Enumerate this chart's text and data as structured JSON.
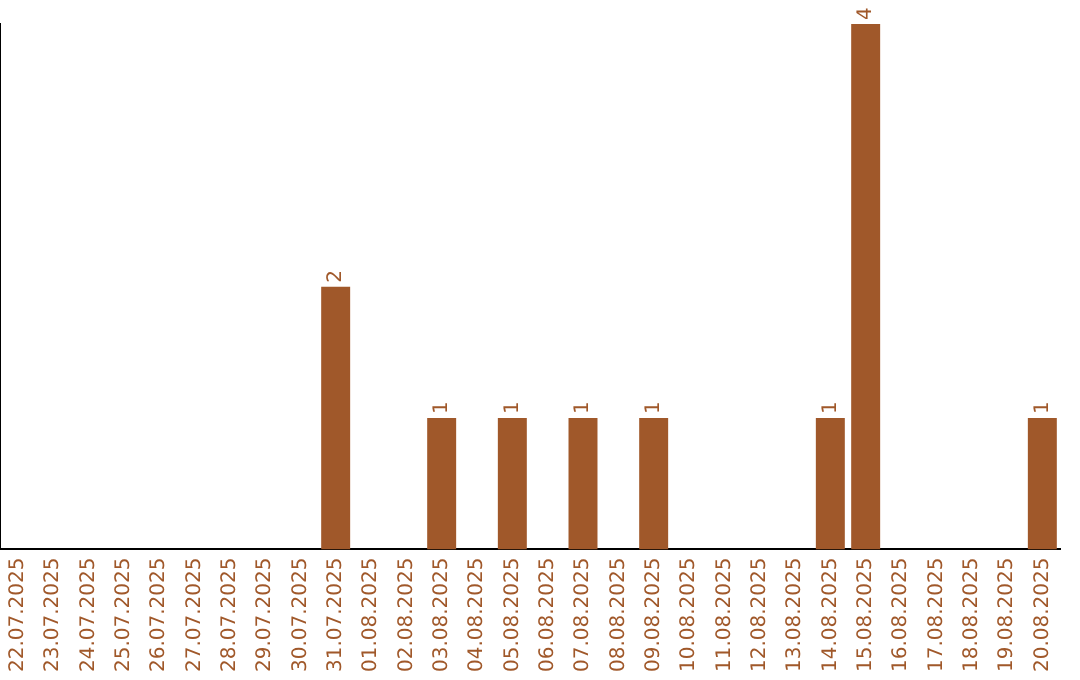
{
  "chart_data": {
    "type": "bar",
    "categories": [
      "22.07.2025",
      "23.07.2025",
      "24.07.2025",
      "25.07.2025",
      "26.07.2025",
      "27.07.2025",
      "28.07.2025",
      "29.07.2025",
      "30.07.2025",
      "31.07.2025",
      "01.08.2025",
      "02.08.2025",
      "03.08.2025",
      "04.08.2025",
      "05.08.2025",
      "06.08.2025",
      "07.08.2025",
      "08.08.2025",
      "09.08.2025",
      "10.08.2025",
      "11.08.2025",
      "12.08.2025",
      "13.08.2025",
      "14.08.2025",
      "15.08.2025",
      "16.08.2025",
      "17.08.2025",
      "18.08.2025",
      "19.08.2025",
      "20.08.2025"
    ],
    "values": [
      0,
      0,
      0,
      0,
      0,
      0,
      0,
      0,
      0,
      2,
      0,
      0,
      1,
      0,
      1,
      0,
      1,
      0,
      1,
      0,
      0,
      0,
      0,
      1,
      4,
      0,
      0,
      0,
      0,
      1
    ],
    "value_labels": [
      null,
      null,
      null,
      null,
      null,
      null,
      null,
      null,
      null,
      "2",
      null,
      null,
      "1",
      null,
      "1",
      null,
      "1",
      null,
      "1",
      null,
      null,
      null,
      null,
      "1",
      "4",
      null,
      null,
      null,
      null,
      "1"
    ],
    "color": "#a0582a",
    "tick_labels": "x",
    "grid": false,
    "legend": false
  }
}
